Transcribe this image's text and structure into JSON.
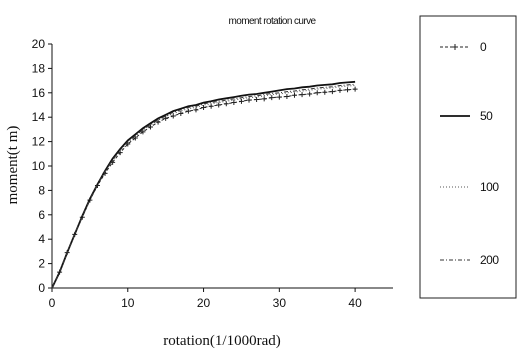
{
  "chart_data": {
    "type": "line",
    "title": "moment rotation curve",
    "xlabel": "rotation(1/1000rad)",
    "ylabel": "moment(t m)",
    "xlim": [
      0,
      45
    ],
    "ylim": [
      0,
      20
    ],
    "xticks": [
      0,
      10,
      20,
      30,
      40
    ],
    "yticks": [
      0,
      2,
      4,
      6,
      8,
      10,
      12,
      14,
      16,
      18,
      20
    ],
    "grid": false,
    "legend_position": "right",
    "x": [
      0,
      1,
      2,
      3,
      4,
      5,
      6,
      7,
      8,
      9,
      10,
      11,
      12,
      13,
      14,
      15,
      16,
      17,
      18,
      19,
      20,
      21,
      22,
      23,
      24,
      25,
      26,
      27,
      28,
      29,
      30,
      31,
      32,
      33,
      34,
      35,
      36,
      37,
      38,
      39,
      40
    ],
    "series": [
      {
        "name": "0",
        "style": "dashed-plus",
        "color": "#222222",
        "values": [
          0,
          1.3,
          2.9,
          4.4,
          5.8,
          7.2,
          8.4,
          9.4,
          10.3,
          11.1,
          11.8,
          12.3,
          12.8,
          13.2,
          13.6,
          13.9,
          14.1,
          14.3,
          14.5,
          14.6,
          14.8,
          14.9,
          15.0,
          15.1,
          15.2,
          15.3,
          15.4,
          15.45,
          15.5,
          15.6,
          15.65,
          15.7,
          15.8,
          15.85,
          15.9,
          16.0,
          16.05,
          16.1,
          16.2,
          16.25,
          16.3
        ]
      },
      {
        "name": "50",
        "style": "solid",
        "color": "#111111",
        "values": [
          0,
          1.3,
          2.9,
          4.4,
          5.9,
          7.3,
          8.5,
          9.6,
          10.6,
          11.4,
          12.1,
          12.6,
          13.1,
          13.5,
          13.9,
          14.2,
          14.5,
          14.7,
          14.9,
          15.0,
          15.2,
          15.3,
          15.45,
          15.55,
          15.65,
          15.75,
          15.85,
          15.9,
          16.0,
          16.1,
          16.2,
          16.3,
          16.35,
          16.45,
          16.5,
          16.6,
          16.65,
          16.7,
          16.8,
          16.85,
          16.9
        ]
      },
      {
        "name": "100",
        "style": "dotted",
        "color": "#555555",
        "values": [
          0,
          1.3,
          2.9,
          4.4,
          5.85,
          7.25,
          8.45,
          9.5,
          10.45,
          11.25,
          11.95,
          12.45,
          12.95,
          13.35,
          13.75,
          14.05,
          14.3,
          14.5,
          14.7,
          14.8,
          15.0,
          15.1,
          15.2,
          15.3,
          15.4,
          15.5,
          15.6,
          15.65,
          15.75,
          15.85,
          15.9,
          16.0,
          16.05,
          16.15,
          16.2,
          16.3,
          16.35,
          16.4,
          16.5,
          16.55,
          16.6
        ]
      },
      {
        "name": "200",
        "style": "dash-dot",
        "color": "#333333",
        "values": [
          0,
          1.3,
          2.9,
          4.4,
          5.85,
          7.25,
          8.5,
          9.55,
          10.5,
          11.3,
          12.0,
          12.5,
          13.0,
          13.4,
          13.8,
          14.1,
          14.4,
          14.6,
          14.8,
          14.9,
          15.1,
          15.2,
          15.3,
          15.4,
          15.5,
          15.6,
          15.7,
          15.75,
          15.85,
          15.95,
          16.0,
          16.1,
          16.15,
          16.25,
          16.3,
          16.4,
          16.45,
          16.5,
          16.6,
          16.65,
          16.7
        ]
      }
    ]
  }
}
